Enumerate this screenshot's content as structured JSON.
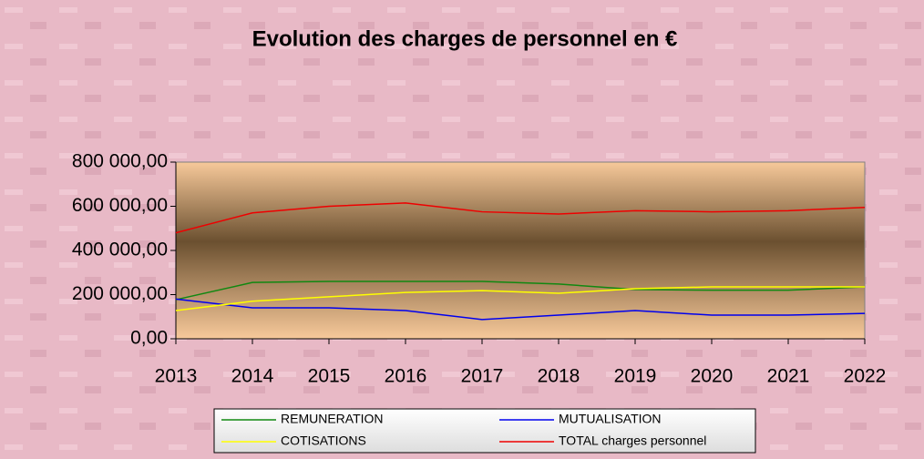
{
  "chart_data": {
    "type": "line",
    "title": "Evolution des charges de personnel en €",
    "categories": [
      "2013",
      "2014",
      "2015",
      "2016",
      "2017",
      "2018",
      "2019",
      "2020",
      "2021",
      "2022"
    ],
    "series": [
      {
        "name": "REMUNERATION",
        "color": "#118811",
        "values": [
          177000,
          255000,
          260000,
          260000,
          260000,
          248000,
          223000,
          220000,
          220000,
          235000
        ]
      },
      {
        "name": "MUTUALISATION",
        "color": "#0000ee",
        "values": [
          180000,
          140000,
          140000,
          128000,
          87000,
          107000,
          128000,
          107000,
          107000,
          115000
        ]
      },
      {
        "name": "COTISATIONS",
        "color": "#ffff00",
        "values": [
          128000,
          170000,
          190000,
          210000,
          218000,
          206000,
          227000,
          235000,
          235000,
          235000
        ]
      },
      {
        "name": "TOTAL charges personnel",
        "color": "#ee0000",
        "values": [
          480000,
          570000,
          600000,
          615000,
          575000,
          565000,
          580000,
          575000,
          580000,
          595000
        ]
      }
    ],
    "ylim": [
      0,
      800000
    ],
    "yticks": [
      {
        "value": 0,
        "label": "0,00"
      },
      {
        "value": 200000,
        "label": "200 000,00"
      },
      {
        "value": 400000,
        "label": "400 000,00"
      },
      {
        "value": 600000,
        "label": "600 000,00"
      },
      {
        "value": 800000,
        "label": "800 000,00"
      }
    ],
    "legend": "bottom"
  }
}
